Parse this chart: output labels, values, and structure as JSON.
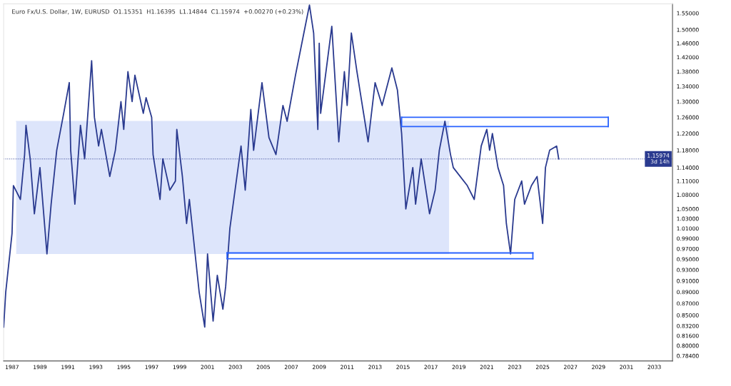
{
  "chart_data": {
    "type": "line",
    "title": "Euro Fx/U.S. Dollar, 1W, EURUSD  O1.15351  H1.16395  L1.14844  C1.15974  +0.00270 (+0.23%)",
    "log": "y",
    "grid": false,
    "marker": "none",
    "line_style": "solid",
    "xlim": [
      1986.4,
      2034.3
    ],
    "ylim": [
      0.776,
      1.579
    ],
    "xticks": [
      1987,
      1989,
      1991,
      1993,
      1995,
      1997,
      1999,
      2001,
      2003,
      2005,
      2007,
      2009,
      2011,
      2013,
      2015,
      2017,
      2019,
      2021,
      2023,
      2025,
      2027,
      2029,
      2031,
      2033
    ],
    "yticks": [
      {
        "value": 0.784,
        "label": "0.78400"
      },
      {
        "value": 0.8,
        "label": "0.80000"
      },
      {
        "value": 0.816,
        "label": "0.81600"
      },
      {
        "value": 0.832,
        "label": "0.83200"
      },
      {
        "value": 0.85,
        "label": "0.85000"
      },
      {
        "value": 0.87,
        "label": "0.87000"
      },
      {
        "value": 0.89,
        "label": "0.89000"
      },
      {
        "value": 0.91,
        "label": "0.91000"
      },
      {
        "value": 0.93,
        "label": "0.93000"
      },
      {
        "value": 0.95,
        "label": "0.95000"
      },
      {
        "value": 0.97,
        "label": "0.97000"
      },
      {
        "value": 0.99,
        "label": "0.99000"
      },
      {
        "value": 1.01,
        "label": "1.01000"
      },
      {
        "value": 1.03,
        "label": "1.03000"
      },
      {
        "value": 1.05,
        "label": "1.05000"
      },
      {
        "value": 1.08,
        "label": "1.08000"
      },
      {
        "value": 1.11,
        "label": "1.11000"
      },
      {
        "value": 1.14,
        "label": "1.14000"
      },
      {
        "value": 1.18,
        "label": "1.18000"
      },
      {
        "value": 1.22,
        "label": "1.22000"
      },
      {
        "value": 1.26,
        "label": "1.26000"
      },
      {
        "value": 1.3,
        "label": "1.30000"
      },
      {
        "value": 1.34,
        "label": "1.34000"
      },
      {
        "value": 1.38,
        "label": "1.38000"
      },
      {
        "value": 1.42,
        "label": "1.42000"
      },
      {
        "value": 1.46,
        "label": "1.46000"
      },
      {
        "value": 1.5,
        "label": "1.50000"
      },
      {
        "value": 1.55,
        "label": "1.55000"
      }
    ],
    "series": [
      {
        "type": "line",
        "color": "#dde5fb",
        "x": [
          1987.3,
          2018.3
        ],
        "values": [
          1.25,
          1.25
        ],
        "lower": [
          0.96,
          0.96
        ],
        "upper": [
          1.25,
          1.25
        ]
      },
      {
        "color": "#2a3a8f",
        "x": [
          1986.4,
          1986.55,
          1987.0,
          1987.1,
          1987.6,
          1987.9,
          1988.0,
          1988.3,
          1988.6,
          1989.0,
          1989.5,
          1989.8,
          1990.2,
          1990.7,
          1991.1,
          1991.2,
          1991.5,
          1991.9,
          1992.2,
          1992.7,
          1992.9,
          1993.2,
          1993.4,
          1994.0,
          1994.4,
          1994.8,
          1995.0,
          1995.3,
          1995.6,
          1995.8,
          1996.4,
          1996.6,
          1997.0,
          1997.1,
          1997.6,
          1997.8,
          1998.3,
          1998.7,
          1998.8,
          1999.2,
          1999.5,
          1999.7,
          2000.4,
          2000.8,
          2001.0,
          2001.4,
          2001.7,
          2002.1,
          2002.3,
          2002.6,
          2003.4,
          2003.7,
          2004.1,
          2004.3,
          2004.9,
          2005.4,
          2005.9,
          2006.4,
          2006.7,
          2007.3,
          2007.9,
          2008.3,
          2008.6,
          2008.9,
          2009.0,
          2009.1,
          2009.9,
          2010.4,
          2010.8,
          2011.0,
          2011.3,
          2011.7,
          2012.5,
          2013.0,
          2013.5,
          2014.2,
          2014.6,
          2014.9,
          2015.2,
          2015.7,
          2015.9,
          2016.3,
          2016.9,
          2017.3,
          2017.6,
          2018.0,
          2018.4,
          2018.6,
          2019.6,
          2020.1,
          2020.6,
          2021.0,
          2021.2,
          2021.4,
          2021.8,
          2022.2,
          2022.4,
          2022.7,
          2023.0,
          2023.5,
          2023.7,
          2024.2,
          2024.6,
          2025.0,
          2025.2,
          2025.5,
          2026.0,
          2026.15
        ],
        "values": [
          0.83,
          0.89,
          1.0,
          1.1,
          1.07,
          1.17,
          1.24,
          1.16,
          1.04,
          1.14,
          0.96,
          1.06,
          1.18,
          1.27,
          1.35,
          1.18,
          1.06,
          1.24,
          1.16,
          1.41,
          1.26,
          1.19,
          1.23,
          1.12,
          1.18,
          1.3,
          1.23,
          1.38,
          1.3,
          1.37,
          1.27,
          1.31,
          1.26,
          1.17,
          1.07,
          1.16,
          1.09,
          1.11,
          1.23,
          1.12,
          1.02,
          1.07,
          0.89,
          0.83,
          0.96,
          0.84,
          0.92,
          0.86,
          0.9,
          1.01,
          1.19,
          1.09,
          1.28,
          1.18,
          1.35,
          1.21,
          1.17,
          1.29,
          1.25,
          1.37,
          1.49,
          1.575,
          1.49,
          1.23,
          1.46,
          1.27,
          1.51,
          1.2,
          1.38,
          1.29,
          1.49,
          1.38,
          1.2,
          1.35,
          1.29,
          1.39,
          1.33,
          1.22,
          1.05,
          1.14,
          1.06,
          1.16,
          1.04,
          1.09,
          1.18,
          1.25,
          1.17,
          1.14,
          1.1,
          1.07,
          1.19,
          1.23,
          1.18,
          1.22,
          1.14,
          1.1,
          1.02,
          0.96,
          1.07,
          1.11,
          1.06,
          1.1,
          1.12,
          1.02,
          1.14,
          1.18,
          1.19,
          1.15974
        ]
      },
      {
        "type": "line",
        "color": "#2962ff",
        "x": [
          2014.9,
          2029.7
        ],
        "values": [
          1.26,
          1.26
        ]
      },
      {
        "type": "line",
        "color": "#2962ff",
        "x": [
          2014.9,
          2029.7
        ],
        "values": [
          1.237,
          1.237
        ]
      },
      {
        "type": "line",
        "color": "#2962ff",
        "x": [
          2002.4,
          2024.3
        ],
        "values": [
          0.962,
          0.962
        ]
      },
      {
        "type": "line",
        "color": "#2962ff",
        "x": [
          2002.4,
          2024.3
        ],
        "values": [
          0.951,
          0.951
        ]
      },
      {
        "type": "line",
        "color": "#2962ff",
        "x": [
          2014.9,
          2014.9
        ],
        "values": [
          1.237,
          1.26
        ]
      },
      {
        "type": "line",
        "color": "#2962ff",
        "x": [
          2029.7,
          2029.7
        ],
        "values": [
          1.237,
          1.26
        ]
      },
      {
        "type": "line",
        "color": "#2962ff",
        "x": [
          2002.4,
          2002.4
        ],
        "values": [
          0.951,
          0.962
        ]
      },
      {
        "type": "line",
        "color": "#2962ff",
        "x": [
          2024.3,
          2024.3
        ],
        "values": [
          0.951,
          0.962
        ]
      }
    ],
    "ref_lines": [
      {
        "axis": "y",
        "value": 1.15974,
        "label": "1.15974\n3d 14h",
        "color": "#2a3a8f",
        "line_style": "dotted"
      }
    ]
  }
}
